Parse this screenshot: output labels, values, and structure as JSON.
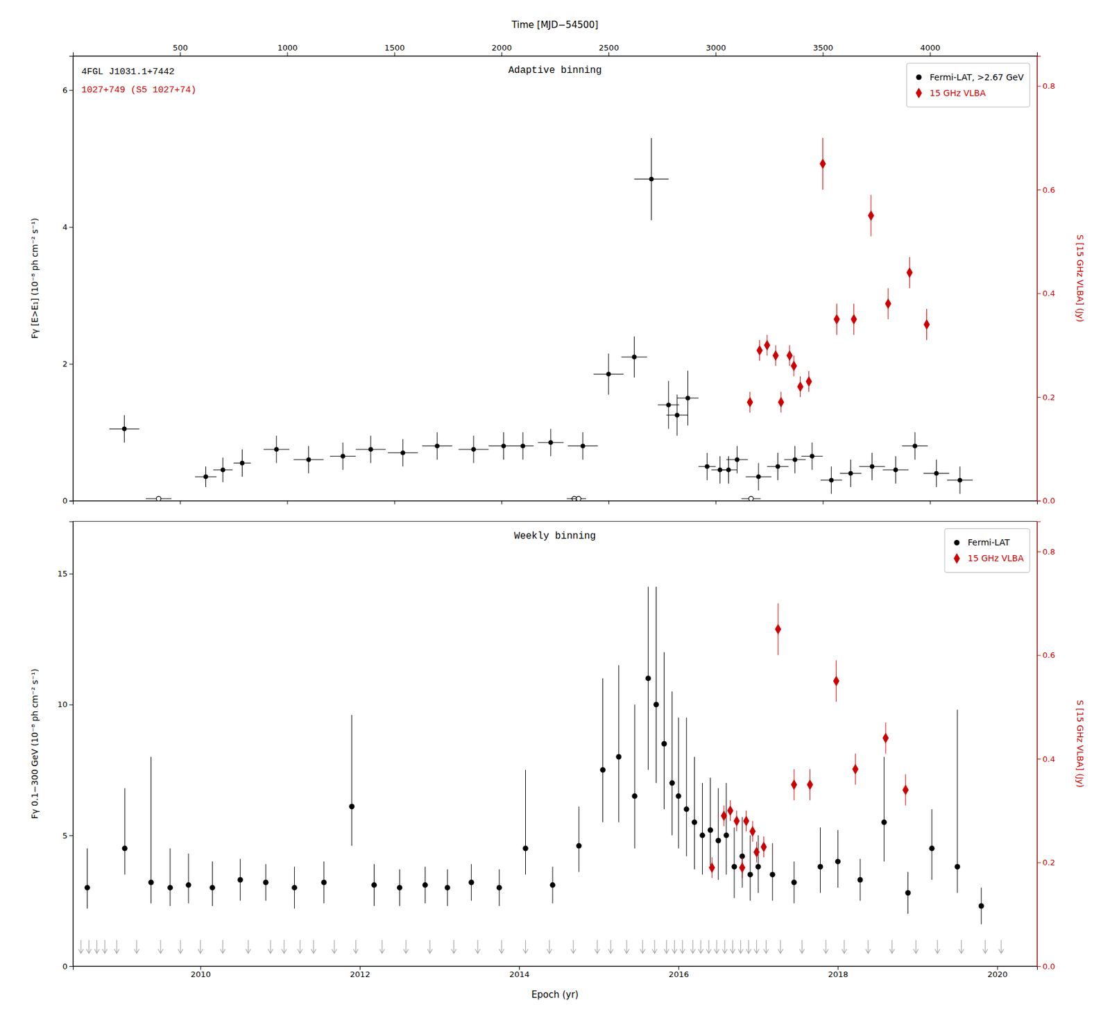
{
  "chart_data": [
    {
      "type": "scatter",
      "title": "Adaptive binning",
      "xlabel": "Time [MJD−54500]",
      "ylabel": "Fγ [E>E₁] (10⁻⁸ ph cm⁻² s⁻¹)",
      "y2label": "S [15 GHz VLBA] (Jy)",
      "xlim": [
        0,
        4500
      ],
      "xticks": [
        500,
        1000,
        1500,
        2000,
        2500,
        3000,
        3500,
        4000
      ],
      "ylim": [
        0,
        6.5
      ],
      "yticks": [
        0,
        2,
        4,
        6
      ],
      "y2lim": [
        0,
        0.858
      ],
      "y2ticks": [
        {
          "value": 0,
          "label": "0.0"
        },
        0.2,
        0.4,
        0.6,
        0.8
      ],
      "grid": false,
      "legend": "upper right",
      "annotations": [
        {
          "text": "4FGL J1031.1+7442",
          "color": "#000000"
        },
        {
          "text": "1027+749 (S5 1027+74)",
          "color": "#cc0000"
        }
      ],
      "series": [
        {
          "name": "Fermi-LAT, >2.67 GeV",
          "color": "#000000",
          "marker": "circle",
          "x": [
            240,
            620,
            700,
            790,
            950,
            1100,
            1260,
            1390,
            1540,
            1700,
            1870,
            2010,
            2100,
            2230,
            2380,
            2500,
            2620,
            2700,
            2780,
            2820,
            2870,
            2960,
            3020,
            3060,
            3100,
            3200,
            3290,
            3370,
            3450,
            3540,
            3630,
            3730,
            3840,
            3930,
            4030,
            4140
          ],
          "values": [
            1.05,
            0.35,
            0.45,
            0.55,
            0.75,
            0.6,
            0.65,
            0.75,
            0.7,
            0.8,
            0.75,
            0.8,
            0.8,
            0.85,
            0.8,
            1.85,
            2.1,
            4.7,
            1.4,
            1.25,
            1.5,
            0.5,
            0.45,
            0.45,
            0.6,
            0.35,
            0.5,
            0.6,
            0.65,
            0.3,
            0.4,
            0.5,
            0.45,
            0.8,
            0.4,
            0.3
          ],
          "xerr": [
            70,
            50,
            45,
            40,
            60,
            70,
            60,
            70,
            70,
            70,
            70,
            70,
            50,
            60,
            70,
            70,
            60,
            80,
            50,
            50,
            50,
            40,
            40,
            40,
            50,
            60,
            50,
            50,
            50,
            50,
            50,
            60,
            60,
            60,
            60,
            60
          ],
          "yerr": [
            0.2,
            0.15,
            0.18,
            0.2,
            0.2,
            0.2,
            0.2,
            0.2,
            0.2,
            0.2,
            0.2,
            0.2,
            0.2,
            0.2,
            0.2,
            0.3,
            0.3,
            0.6,
            0.35,
            0.3,
            0.4,
            0.2,
            0.2,
            0.2,
            0.2,
            0.2,
            0.2,
            0.2,
            0.2,
            0.2,
            0.2,
            0.2,
            0.2,
            0.2,
            0.2,
            0.2
          ]
        },
        {
          "color": "#000000",
          "marker": "open-circle",
          "x": [
            400,
            2340,
            2360,
            3165
          ],
          "values": [
            0.03,
            0.03,
            0.03,
            0.03
          ],
          "xerr": [
            60,
            35,
            35,
            45
          ]
        },
        {
          "name": "15 GHz VLBA",
          "axis": "y2",
          "color": "#cc0000",
          "marker": "diamond",
          "x": [
            3160,
            3205,
            3240,
            3280,
            3305,
            3345,
            3365,
            3395,
            3435,
            3500,
            3565,
            3645,
            3725,
            3805,
            3905,
            3985
          ],
          "values": [
            0.19,
            0.29,
            0.3,
            0.28,
            0.19,
            0.28,
            0.26,
            0.22,
            0.23,
            0.65,
            0.35,
            0.35,
            0.55,
            0.38,
            0.44,
            0.34
          ],
          "yerr": [
            0.02,
            0.02,
            0.02,
            0.02,
            0.02,
            0.02,
            0.02,
            0.02,
            0.02,
            0.05,
            0.03,
            0.03,
            0.04,
            0.03,
            0.03,
            0.03
          ]
        }
      ]
    },
    {
      "type": "scatter",
      "title": "Weekly binning",
      "xlabel": "Epoch (yr)",
      "ylabel": "Fγ 0.1−300 GeV (10⁻⁸ ph cm⁻² s⁻¹)",
      "y2label": "S [15 GHz VLBA] (Jy)",
      "xlim": [
        2008.4,
        2020.5
      ],
      "xticks": [
        2010,
        2012,
        2014,
        2016,
        2018,
        2020
      ],
      "ylim": [
        0,
        17
      ],
      "yticks": [
        0,
        5,
        10,
        15
      ],
      "y2lim": [
        0,
        0.858
      ],
      "y2ticks": [
        {
          "value": 0,
          "label": "0.0"
        },
        0.2,
        0.4,
        0.6,
        0.8
      ],
      "grid": false,
      "legend": "upper right",
      "series": [
        {
          "color": "#aaaaaa",
          "marker": "arrow-down",
          "x": [
            2008.5,
            2008.6,
            2008.7,
            2008.8,
            2008.95,
            2009.2,
            2009.5,
            2009.75,
            2010.0,
            2010.28,
            2010.6,
            2010.88,
            2011.05,
            2011.25,
            2011.42,
            2011.68,
            2011.95,
            2012.28,
            2012.58,
            2012.88,
            2013.18,
            2013.48,
            2013.78,
            2014.08,
            2014.38,
            2014.68,
            2014.98,
            2015.15,
            2015.35,
            2015.55,
            2015.7,
            2015.85,
            2015.95,
            2016.05,
            2016.18,
            2016.28,
            2016.38,
            2016.48,
            2016.58,
            2016.68,
            2016.78,
            2016.88,
            2016.98,
            2017.1,
            2017.28,
            2017.55,
            2017.85,
            2018.08,
            2018.38,
            2018.68,
            2018.98,
            2019.25,
            2019.55,
            2019.85,
            2020.05
          ],
          "values": [
            1.0,
            1.0,
            1.0,
            1.0,
            1.0,
            1.0,
            1.0,
            1.0,
            1.0,
            1.0,
            1.0,
            1.0,
            1.0,
            1.0,
            1.0,
            1.0,
            1.0,
            1.0,
            1.0,
            1.0,
            1.0,
            1.0,
            1.0,
            1.0,
            1.0,
            1.0,
            1.0,
            1.0,
            1.0,
            1.0,
            1.0,
            1.0,
            1.0,
            1.0,
            1.0,
            1.0,
            1.0,
            1.0,
            1.0,
            1.0,
            1.0,
            1.0,
            1.0,
            1.0,
            1.0,
            1.0,
            1.0,
            1.0,
            1.0,
            1.0,
            1.0,
            1.0,
            1.0,
            1.0,
            1.0
          ]
        },
        {
          "name": "Fermi-LAT",
          "color": "#000000",
          "marker": "circle",
          "x": [
            2008.58,
            2009.05,
            2009.38,
            2009.62,
            2009.85,
            2010.15,
            2010.5,
            2010.82,
            2011.18,
            2011.55,
            2011.9,
            2012.18,
            2012.5,
            2012.82,
            2013.1,
            2013.4,
            2013.75,
            2014.08,
            2014.42,
            2014.75,
            2015.05,
            2015.25,
            2015.45,
            2015.62,
            2015.72,
            2015.82,
            2015.92,
            2016.0,
            2016.1,
            2016.2,
            2016.3,
            2016.4,
            2016.5,
            2016.6,
            2016.7,
            2016.8,
            2016.9,
            2017.0,
            2017.18,
            2017.45,
            2017.78,
            2018.0,
            2018.28,
            2018.58,
            2018.88,
            2019.18,
            2019.5,
            2019.8
          ],
          "values": [
            3.0,
            4.5,
            3.2,
            3.0,
            3.1,
            3.0,
            3.3,
            3.2,
            3.0,
            3.2,
            6.1,
            3.1,
            3.0,
            3.1,
            3.0,
            3.2,
            3.0,
            4.5,
            3.1,
            4.6,
            7.5,
            8.0,
            6.5,
            11.0,
            10.0,
            8.5,
            7.0,
            6.5,
            6.0,
            5.5,
            5.0,
            5.2,
            4.8,
            5.0,
            3.8,
            4.2,
            3.5,
            3.8,
            3.5,
            3.2,
            3.8,
            4.0,
            3.3,
            5.5,
            2.8,
            4.5,
            3.8,
            2.3
          ],
          "yerr_minus": [
            0.8,
            1.0,
            0.8,
            0.7,
            0.7,
            0.7,
            0.8,
            0.7,
            0.8,
            0.8,
            1.5,
            0.8,
            0.7,
            0.7,
            0.7,
            0.7,
            0.7,
            1.0,
            0.7,
            1.0,
            2.0,
            2.5,
            2.0,
            3.5,
            3.0,
            2.5,
            2.0,
            2.0,
            1.8,
            1.8,
            1.5,
            1.5,
            1.5,
            1.5,
            1.2,
            1.2,
            1.0,
            1.0,
            1.0,
            0.8,
            1.0,
            1.0,
            0.8,
            1.5,
            0.8,
            1.2,
            1.0,
            0.7
          ],
          "yerr_plus": [
            1.5,
            2.3,
            4.8,
            1.5,
            1.2,
            1.0,
            0.8,
            0.7,
            0.8,
            0.8,
            3.5,
            0.8,
            0.7,
            0.7,
            0.7,
            0.7,
            0.7,
            3.0,
            0.7,
            1.5,
            3.5,
            3.5,
            3.5,
            3.5,
            4.5,
            3.5,
            3.5,
            3.0,
            3.5,
            2.5,
            2.0,
            2.0,
            2.0,
            2.0,
            1.5,
            1.5,
            1.5,
            1.2,
            1.2,
            0.8,
            1.5,
            1.2,
            0.8,
            2.5,
            0.8,
            1.5,
            6.0,
            0.7
          ]
        },
        {
          "name": "15 GHz VLBA",
          "axis": "y2",
          "color": "#cc0000",
          "marker": "diamond",
          "x": [
            2016.42,
            2016.57,
            2016.65,
            2016.73,
            2016.8,
            2016.85,
            2016.93,
            2016.98,
            2017.07,
            2017.25,
            2017.45,
            2017.65,
            2017.98,
            2018.22,
            2018.6,
            2018.85
          ],
          "values": [
            0.19,
            0.29,
            0.3,
            0.28,
            0.19,
            0.28,
            0.26,
            0.22,
            0.23,
            0.65,
            0.35,
            0.35,
            0.55,
            0.38,
            0.44,
            0.34
          ],
          "yerr": [
            0.02,
            0.02,
            0.02,
            0.02,
            0.02,
            0.02,
            0.02,
            0.02,
            0.02,
            0.05,
            0.03,
            0.03,
            0.04,
            0.03,
            0.03,
            0.03
          ]
        }
      ]
    }
  ]
}
